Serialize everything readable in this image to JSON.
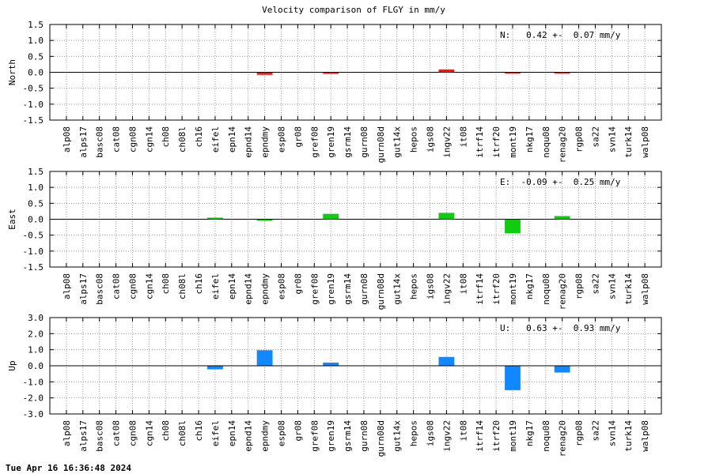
{
  "title": "Velocity comparison of FLGY in mm/y",
  "timestamp": "Tue Apr 16 16:36:48 2024",
  "chart_data": [
    {
      "type": "bar",
      "ylabel": "North",
      "annotation": "N:   0.42 +-  0.07 mm/y",
      "ylim": [
        -1.5,
        1.5
      ],
      "yticks": [
        "1.5",
        "1.0",
        "0.5",
        "0.0",
        "-0.5",
        "-1.0",
        "-1.5"
      ],
      "ytick_values": [
        1.5,
        1.0,
        0.5,
        0.0,
        -0.5,
        -1.0,
        -1.5
      ],
      "color": "#dd2222",
      "grid": true,
      "categories": [
        "alp08",
        "alps17",
        "basc08",
        "cat08",
        "cgn08",
        "cgn14",
        "ch08",
        "ch08l",
        "ch16",
        "eifel",
        "epn14",
        "epnd14",
        "epndmy",
        "esp08",
        "gr08",
        "gref08",
        "gren19",
        "gsrm14",
        "gurn08",
        "gurn08d",
        "gut14x",
        "hepos",
        "igs08",
        "ingv22",
        "it08",
        "itrf14",
        "itrf20",
        "mont19",
        "nkg17",
        "noqu08",
        "renag20",
        "rgp08",
        "sa22",
        "svn14",
        "turk14",
        "walp08"
      ],
      "values": [
        null,
        null,
        null,
        null,
        null,
        null,
        null,
        null,
        null,
        null,
        null,
        null,
        -0.08,
        null,
        null,
        null,
        -0.05,
        null,
        null,
        null,
        null,
        null,
        null,
        0.09,
        null,
        null,
        null,
        -0.03,
        null,
        null,
        -0.03,
        null,
        null,
        null,
        null,
        null
      ]
    },
    {
      "type": "bar",
      "ylabel": "East",
      "annotation": "E:  -0.09 +-  0.25 mm/y",
      "ylim": [
        -1.5,
        1.5
      ],
      "yticks": [
        "1.5",
        "1.0",
        "0.5",
        "0.0",
        "-0.5",
        "-1.0",
        "-1.5"
      ],
      "ytick_values": [
        1.5,
        1.0,
        0.5,
        0.0,
        -0.5,
        -1.0,
        -1.5
      ],
      "color": "#11cc11",
      "grid": true,
      "categories": [
        "alp08",
        "alps17",
        "basc08",
        "cat08",
        "cgn08",
        "cgn14",
        "ch08",
        "ch08l",
        "ch16",
        "eifel",
        "epn14",
        "epnd14",
        "epndmy",
        "esp08",
        "gr08",
        "gref08",
        "gren19",
        "gsrm14",
        "gurn08",
        "gurn08d",
        "gut14x",
        "hepos",
        "igs08",
        "ingv22",
        "it08",
        "itrf14",
        "itrf20",
        "mont19",
        "nkg17",
        "noqu08",
        "renag20",
        "rgp08",
        "sa22",
        "svn14",
        "turk14",
        "walp08"
      ],
      "values": [
        null,
        null,
        null,
        null,
        null,
        null,
        null,
        null,
        null,
        0.05,
        null,
        null,
        -0.05,
        null,
        null,
        null,
        0.17,
        null,
        null,
        null,
        null,
        null,
        null,
        0.2,
        null,
        null,
        null,
        -0.44,
        null,
        null,
        0.1,
        null,
        null,
        null,
        null,
        null
      ]
    },
    {
      "type": "bar",
      "ylabel": "Up",
      "annotation": "U:   0.63 +-  0.93 mm/y",
      "ylim": [
        -3.0,
        3.0
      ],
      "yticks": [
        "3.0",
        "2.0",
        "1.0",
        "0.0",
        "-1.0",
        "-2.0",
        "-3.0"
      ],
      "ytick_values": [
        3.0,
        2.0,
        1.0,
        0.0,
        -1.0,
        -2.0,
        -3.0
      ],
      "color": "#1188ff",
      "grid": true,
      "categories": [
        "alp08",
        "alps17",
        "basc08",
        "cat08",
        "cgn08",
        "cgn14",
        "ch08",
        "ch08l",
        "ch16",
        "eifel",
        "epn14",
        "epnd14",
        "epndmy",
        "esp08",
        "gr08",
        "gref08",
        "gren19",
        "gsrm14",
        "gurn08",
        "gurn08d",
        "gut14x",
        "hepos",
        "igs08",
        "ingv22",
        "it08",
        "itrf14",
        "itrf20",
        "mont19",
        "nkg17",
        "noqu08",
        "renag20",
        "rgp08",
        "sa22",
        "svn14",
        "turk14",
        "walp08"
      ],
      "values": [
        null,
        null,
        null,
        null,
        null,
        null,
        null,
        null,
        null,
        -0.22,
        null,
        null,
        0.97,
        null,
        null,
        null,
        0.2,
        null,
        null,
        null,
        null,
        null,
        null,
        0.55,
        null,
        null,
        null,
        -1.52,
        null,
        null,
        -0.42,
        null,
        null,
        null,
        null,
        null
      ]
    }
  ]
}
